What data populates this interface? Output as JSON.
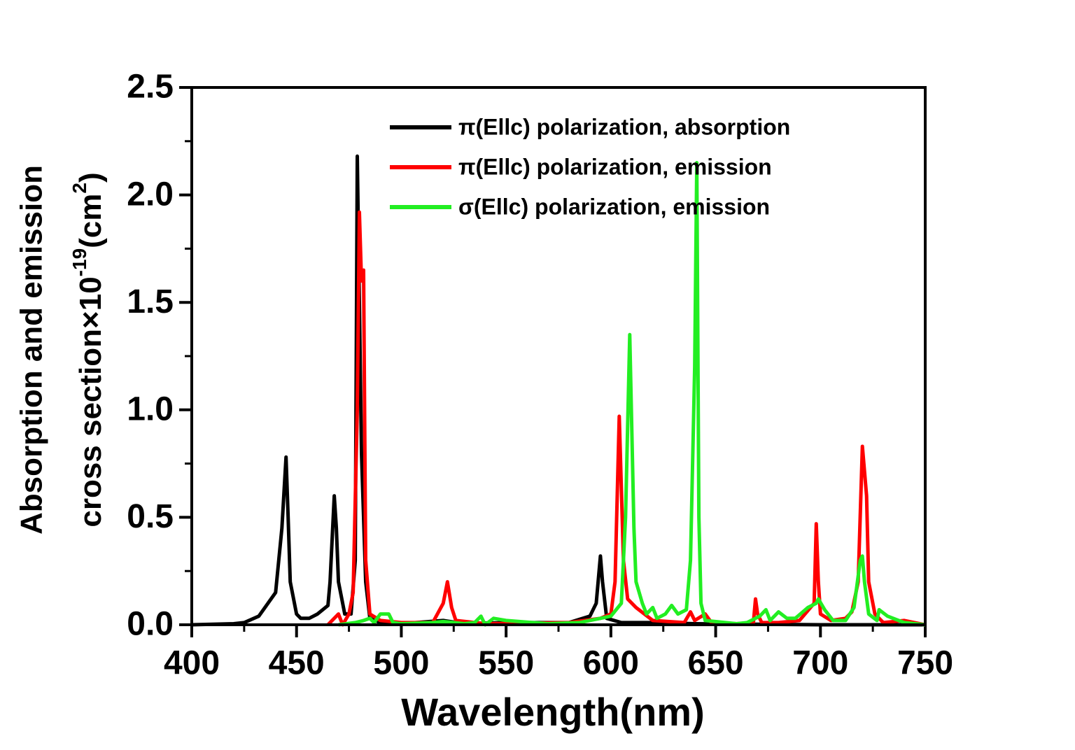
{
  "chart_data": {
    "type": "line",
    "xlabel": "Wavelength(nm)",
    "ylabel": [
      "Absorption and emission",
      "cross section×10",
      "-19",
      "(cm",
      "2",
      ")"
    ],
    "xlim": [
      400,
      750
    ],
    "xticks": [
      400,
      450,
      500,
      550,
      600,
      650,
      700,
      750
    ],
    "ylim": [
      0,
      2.5
    ],
    "yticks": [
      {
        "value": 0,
        "label": "0.0"
      },
      0.5,
      {
        "value": 1,
        "label": "1.0"
      },
      1.5,
      {
        "value": 2,
        "label": "2.0"
      },
      2.5
    ],
    "legend": "upper right",
    "series": [
      {
        "name": "π(Ellc) polarization, absorption",
        "color": "#000000",
        "x": [
          400,
          420,
          425,
          432,
          440,
          443,
          445,
          446,
          447,
          450,
          452,
          456,
          460,
          465,
          466,
          468,
          469,
          470,
          473,
          476,
          478,
          479,
          480,
          481,
          483,
          485,
          490,
          500,
          520,
          530,
          550,
          580,
          590,
          593,
          595,
          596,
          598,
          605,
          620,
          640,
          700,
          750
        ],
        "values": [
          0,
          0.005,
          0.01,
          0.04,
          0.15,
          0.45,
          0.78,
          0.5,
          0.2,
          0.05,
          0.03,
          0.03,
          0.05,
          0.09,
          0.2,
          0.6,
          0.45,
          0.2,
          0.05,
          0.05,
          0.3,
          2.18,
          1.5,
          0.8,
          0.2,
          0.03,
          0.01,
          0.005,
          0.02,
          0.005,
          0.01,
          0.01,
          0.04,
          0.1,
          0.32,
          0.2,
          0.03,
          0.01,
          0.01,
          0.005,
          0,
          0
        ]
      },
      {
        "name": "π(Ellc) polarization, emission",
        "color": "#ff0000",
        "x": [
          465,
          470,
          472,
          475,
          477,
          479,
          480,
          481,
          482,
          483,
          485,
          490,
          500,
          515,
          520,
          522,
          524,
          526,
          540,
          580,
          595,
          600,
          602,
          604,
          606,
          608,
          612,
          620,
          635,
          638,
          640,
          645,
          648,
          660,
          668,
          669,
          670,
          672,
          680,
          690,
          697,
          698,
          699,
          700,
          705,
          712,
          715,
          718,
          720,
          722,
          723,
          726,
          730,
          740,
          750
        ],
        "values": [
          0,
          0.05,
          0,
          0.05,
          0.15,
          1.0,
          1.92,
          1.6,
          1.65,
          0.3,
          0.05,
          0.02,
          0.01,
          0.01,
          0.1,
          0.2,
          0.08,
          0.02,
          0.005,
          0.01,
          0.03,
          0.05,
          0.2,
          0.97,
          0.3,
          0.12,
          0.08,
          0.02,
          0.01,
          0.06,
          0.02,
          0.05,
          0.01,
          0.005,
          0.01,
          0.12,
          0.05,
          0.01,
          0.01,
          0.02,
          0.1,
          0.47,
          0.2,
          0.05,
          0.02,
          0.03,
          0.06,
          0.2,
          0.83,
          0.6,
          0.2,
          0.05,
          0.01,
          0.02,
          0
        ]
      },
      {
        "name": "σ(Ellc) polarization, emission",
        "color": "#22ee22",
        "x": [
          470,
          478,
          482,
          485,
          487,
          490,
          494,
          496,
          500,
          515,
          520,
          525,
          530,
          535,
          538,
          540,
          544,
          550,
          570,
          585,
          595,
          600,
          605,
          607,
          609,
          611,
          612,
          615,
          617,
          620,
          622,
          626,
          629,
          632,
          636,
          638,
          640,
          641,
          642,
          643,
          645,
          660,
          665,
          671,
          674,
          676,
          680,
          684,
          688,
          694,
          698,
          699,
          702,
          706,
          712,
          716,
          719,
          720,
          721,
          723,
          727,
          728,
          732,
          740,
          750
        ],
        "values": [
          0,
          0.01,
          0.02,
          0.03,
          0.01,
          0.05,
          0.05,
          0.01,
          0.005,
          0.01,
          0.015,
          0.01,
          0.005,
          0.01,
          0.04,
          0,
          0.03,
          0.02,
          0.005,
          0.01,
          0.03,
          0.04,
          0.1,
          0.5,
          1.35,
          0.45,
          0.2,
          0.1,
          0.05,
          0.08,
          0.03,
          0.05,
          0.09,
          0.05,
          0.07,
          0.3,
          1.2,
          2.15,
          0.5,
          0.1,
          0.02,
          0.005,
          0.01,
          0.04,
          0.07,
          0.02,
          0.06,
          0.03,
          0.03,
          0.08,
          0.1,
          0.12,
          0.07,
          0.02,
          0.02,
          0.08,
          0.3,
          0.32,
          0.2,
          0.05,
          0.02,
          0.07,
          0.04,
          0.01,
          0
        ]
      }
    ]
  }
}
